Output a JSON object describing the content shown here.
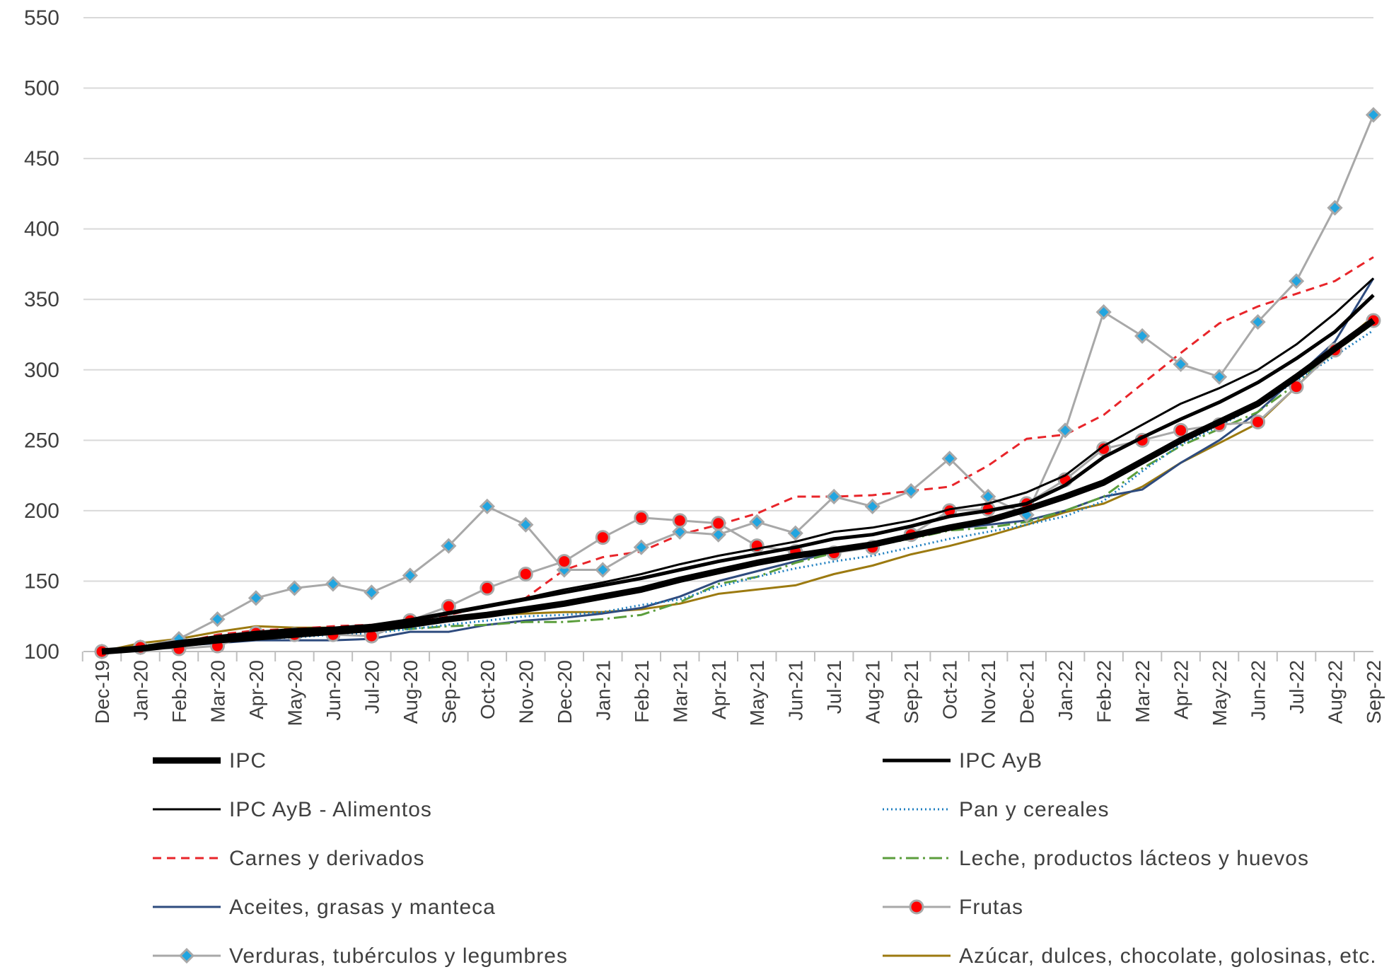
{
  "chart_data": {
    "type": "line",
    "title": "",
    "xlabel": "",
    "ylabel": "",
    "ylim": [
      100,
      550
    ],
    "yticks": [
      100,
      150,
      200,
      250,
      300,
      350,
      400,
      450,
      500,
      550
    ],
    "grid": true,
    "legend_position": "bottom",
    "categories": [
      "Dec-19",
      "Jan-20",
      "Feb-20",
      "Mar-20",
      "Apr-20",
      "May-20",
      "Jun-20",
      "Jul-20",
      "Aug-20",
      "Sep-20",
      "Oct-20",
      "Nov-20",
      "Dec-20",
      "Jan-21",
      "Feb-21",
      "Mar-21",
      "Apr-21",
      "May-21",
      "Jun-21",
      "Jul-21",
      "Aug-21",
      "Sep-21",
      "Oct-21",
      "Nov-21",
      "Dec-21",
      "Jan-22",
      "Feb-22",
      "Mar-22",
      "Apr-22",
      "May-22",
      "Jun-22",
      "Jul-22",
      "Aug-22",
      "Sep-22"
    ],
    "series": [
      {
        "name": "IPC",
        "color": "#000000",
        "style": "thick",
        "values": [
          100,
          102,
          105,
          108,
          110,
          112,
          114,
          116,
          119,
          123,
          126,
          130,
          134,
          139,
          144,
          151,
          157,
          163,
          168,
          172,
          176,
          182,
          188,
          193,
          201,
          210,
          220,
          235,
          250,
          263,
          276,
          295,
          315,
          335
        ]
      },
      {
        "name": "IPC AyB",
        "color": "#000000",
        "style": "medium",
        "values": [
          100,
          103,
          107,
          110,
          113,
          115,
          116,
          118,
          122,
          127,
          132,
          137,
          142,
          147,
          152,
          158,
          164,
          169,
          174,
          180,
          183,
          189,
          196,
          200,
          205,
          218,
          238,
          252,
          265,
          277,
          291,
          308,
          327,
          353
        ]
      },
      {
        "name": "IPC AyB - Alimentos",
        "color": "#000000",
        "style": "thin",
        "values": [
          100,
          103,
          107,
          111,
          114,
          116,
          117,
          119,
          123,
          128,
          133,
          138,
          144,
          149,
          155,
          162,
          168,
          173,
          178,
          185,
          188,
          193,
          201,
          205,
          213,
          225,
          246,
          261,
          276,
          287,
          300,
          318,
          340,
          365
        ]
      },
      {
        "name": "Pan y cereales",
        "color": "#1F7FC0",
        "style": "dotted",
        "values": [
          100,
          103,
          104,
          107,
          109,
          110,
          112,
          113,
          116,
          119,
          122,
          125,
          126,
          128,
          133,
          137,
          146,
          153,
          159,
          164,
          168,
          174,
          180,
          185,
          190,
          196,
          207,
          228,
          247,
          260,
          275,
          292,
          310,
          328
        ]
      },
      {
        "name": "Carnes y derivados",
        "color": "#E8252A",
        "style": "dashed",
        "values": [
          100,
          103,
          106,
          112,
          115,
          116,
          118,
          119,
          122,
          126,
          132,
          138,
          158,
          167,
          171,
          183,
          190,
          198,
          210,
          210,
          211,
          214,
          217,
          232,
          251,
          254,
          268,
          290,
          312,
          333,
          345,
          354,
          363,
          380
        ]
      },
      {
        "name": "Leche, productos lácteos y huevos",
        "color": "#5B9E3C",
        "style": "dashdot",
        "values": [
          100,
          104,
          107,
          109,
          111,
          113,
          114,
          115,
          116,
          118,
          119,
          121,
          121,
          123,
          126,
          135,
          148,
          153,
          163,
          170,
          175,
          180,
          186,
          188,
          192,
          200,
          210,
          230,
          246,
          258,
          270,
          290,
          313,
          333
        ]
      },
      {
        "name": "Aceites, grasas y manteca",
        "color": "#2E4B7E",
        "style": "solid",
        "values": [
          100,
          102,
          104,
          106,
          108,
          108,
          108,
          109,
          114,
          114,
          119,
          122,
          124,
          127,
          131,
          139,
          150,
          157,
          164,
          171,
          175,
          183,
          187,
          190,
          193,
          200,
          210,
          215,
          234,
          250,
          270,
          295,
          320,
          365
        ]
      },
      {
        "name": "Frutas",
        "color": "#A8A8A8",
        "style": "marker-circle",
        "marker_color": "#FF0000",
        "values": [
          100,
          103,
          102,
          104,
          113,
          112,
          112,
          111,
          122,
          132,
          145,
          155,
          164,
          181,
          195,
          193,
          191,
          175,
          171,
          170,
          174,
          183,
          200,
          201,
          205,
          222,
          244,
          250,
          257,
          261,
          263,
          288,
          314,
          335
        ]
      },
      {
        "name": "Verduras, tubérculos y legumbres",
        "color": "#A8A8A8",
        "style": "marker-diamond",
        "marker_color": "#21A5E0",
        "values": [
          100,
          103,
          109,
          123,
          138,
          145,
          148,
          142,
          154,
          175,
          203,
          190,
          158,
          158,
          174,
          185,
          183,
          192,
          184,
          210,
          203,
          214,
          237,
          210,
          197,
          257,
          341,
          324,
          304,
          295,
          334,
          363,
          415,
          481
        ]
      },
      {
        "name": "Azúcar, dulces, chocolate, golosinas, etc.",
        "color": "#9C7A10",
        "style": "solid",
        "values": [
          100,
          106,
          109,
          114,
          118,
          117,
          117,
          118,
          121,
          124,
          126,
          127,
          128,
          128,
          130,
          134,
          141,
          144,
          147,
          155,
          161,
          169,
          175,
          182,
          190,
          199,
          205,
          217,
          234,
          248,
          262,
          288,
          315,
          338
        ]
      }
    ]
  }
}
